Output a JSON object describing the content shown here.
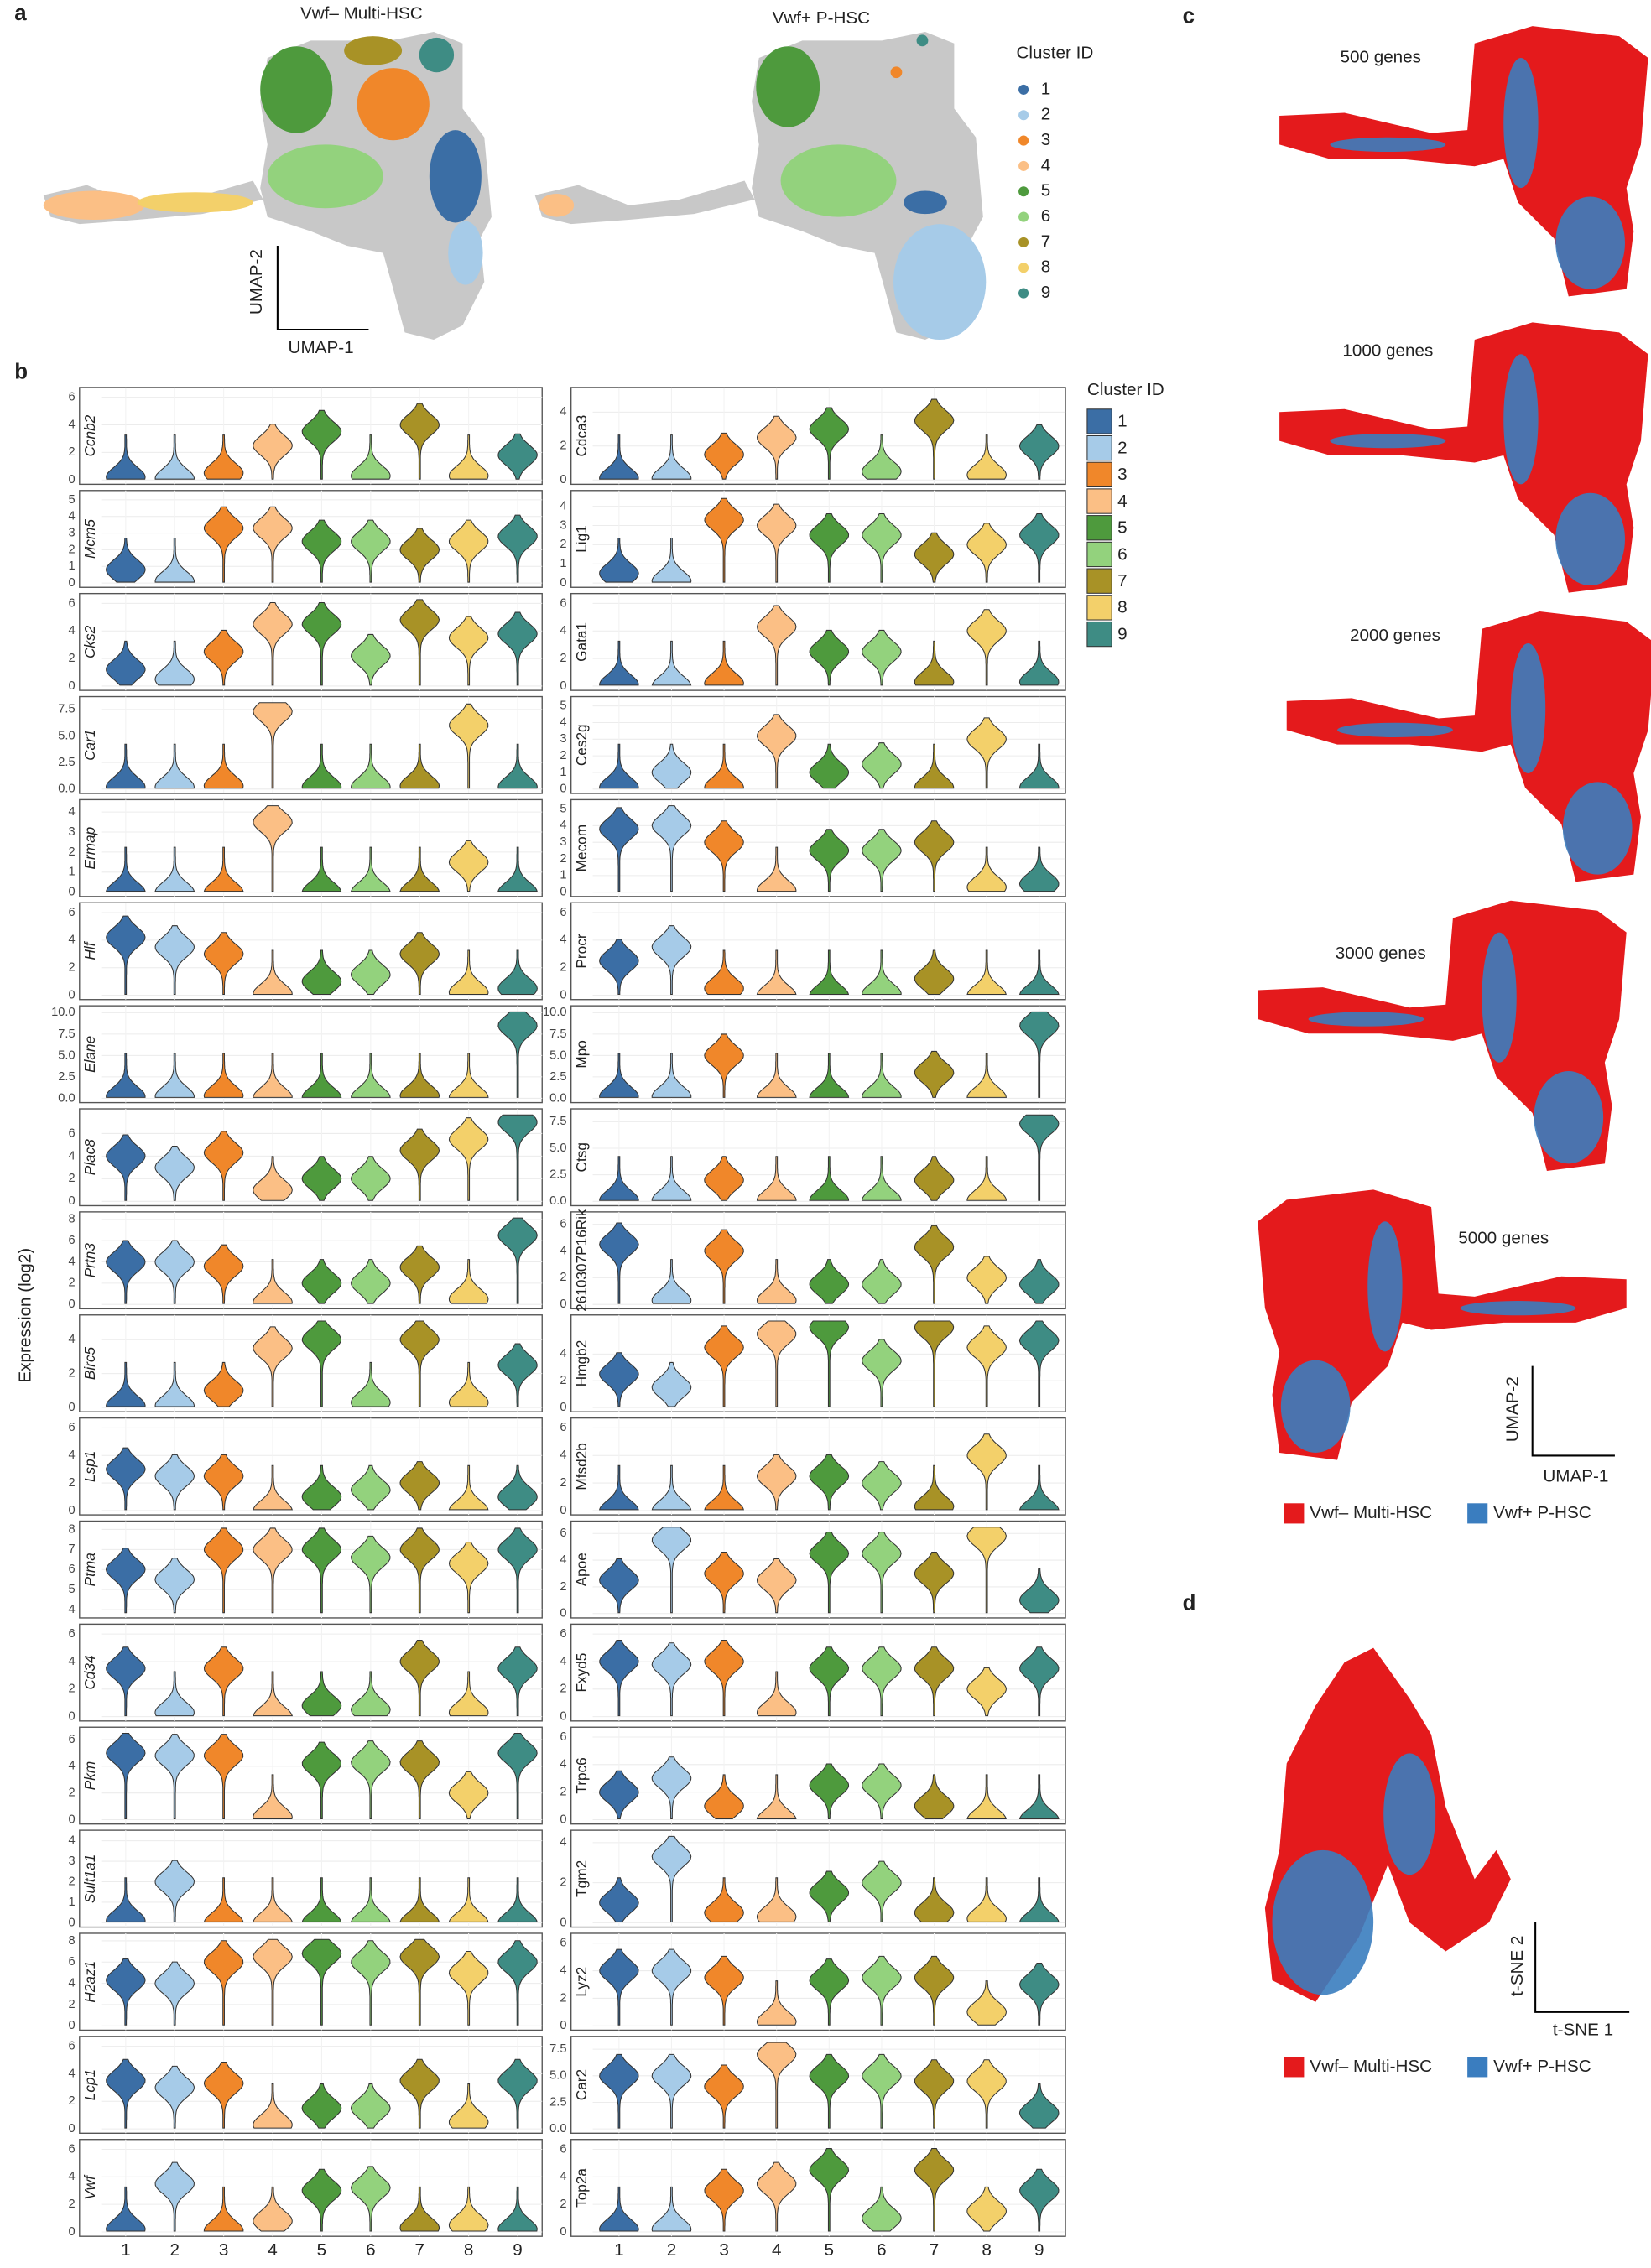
{
  "chart_data": [
    {
      "type": "violin",
      "ylabel": "Expression (log2)",
      "legend_title": "Cluster ID",
      "categories": [
        "1",
        "2",
        "3",
        "4",
        "5",
        "6",
        "7",
        "8",
        "9"
      ],
      "colors": [
        "#3b6ea5",
        "#a6cbe8",
        "#f0872a",
        "#fbbf85",
        "#4e9a3d",
        "#93d27d",
        "#a89226",
        "#f3d06a",
        "#3e8c84"
      ],
      "panels": [
        {
          "gene": "Ccnb2",
          "column": "left",
          "ylim": [
            0,
            6.4
          ],
          "yticks": [
            0,
            2,
            4,
            6
          ],
          "values": [
            0.2,
            0.1,
            0.5,
            2.5,
            3.5,
            0.3,
            4,
            0.3,
            1.8
          ]
        },
        {
          "gene": "Mcm5",
          "column": "left",
          "ylim": [
            0,
            5.3
          ],
          "yticks": [
            0,
            1,
            2,
            3,
            4,
            5
          ],
          "values": [
            0.8,
            0.1,
            3.3,
            3.3,
            2.5,
            2.5,
            2,
            2.5,
            2.8
          ]
        },
        {
          "gene": "Cks2",
          "column": "left",
          "ylim": [
            0,
            6.4
          ],
          "yticks": [
            0,
            2,
            4,
            6
          ],
          "values": [
            1.2,
            0.5,
            2.5,
            4.5,
            4.5,
            2.2,
            4.8,
            3.5,
            3.8
          ]
        },
        {
          "gene": "Car1",
          "column": "left",
          "ylim": [
            0,
            8.3
          ],
          "yticks": [
            {
              "value": 0,
              "label": "0.0"
            },
            2.5,
            {
              "value": 5,
              "label": "5.0"
            },
            7.5
          ],
          "values": [
            0.2,
            0.2,
            0.3,
            7.3,
            0.2,
            0.2,
            0.3,
            6,
            0.2
          ]
        },
        {
          "gene": "Ermap",
          "column": "left",
          "ylim": [
            0,
            4.4
          ],
          "yticks": [
            0,
            1,
            2,
            3,
            4
          ],
          "values": [
            0,
            0,
            0,
            3.5,
            0,
            0,
            0,
            1.5,
            0
          ]
        },
        {
          "gene": "Hlf",
          "column": "left",
          "ylim": [
            0,
            6.4
          ],
          "yticks": [
            0,
            2,
            4,
            6
          ],
          "values": [
            4.2,
            3.5,
            3,
            0.1,
            1,
            1.5,
            3,
            0.2,
            0.5
          ]
        },
        {
          "gene": "Elane",
          "column": "left",
          "ylim": [
            0,
            10.3
          ],
          "yticks": [
            {
              "value": 0,
              "label": "0.0"
            },
            2.5,
            {
              "value": 5,
              "label": "5.0"
            },
            7.5,
            {
              "value": 10,
              "label": "10.0"
            }
          ],
          "values": [
            0.2,
            0.2,
            0.3,
            0.1,
            0.1,
            0.1,
            0.3,
            0.1,
            8.5
          ]
        },
        {
          "gene": "Plac8",
          "column": "left",
          "ylim": [
            0,
            7.8
          ],
          "yticks": [
            0,
            2,
            4,
            6
          ],
          "values": [
            4,
            3,
            4.3,
            1,
            2,
            2,
            4.5,
            5.5,
            7
          ]
        },
        {
          "gene": "Prtn3",
          "column": "left",
          "ylim": [
            0,
            8.3
          ],
          "yticks": [
            0,
            2,
            4,
            6,
            8
          ],
          "values": [
            4,
            4,
            3.6,
            0.2,
            2,
            2,
            3.5,
            0.5,
            6.5
          ]
        },
        {
          "gene": "Birc5",
          "column": "left",
          "ylim": [
            0,
            5.2
          ],
          "yticks": [
            0,
            2,
            4
          ],
          "values": [
            0.1,
            0.1,
            1,
            3.5,
            4,
            0.3,
            4,
            0.3,
            2.5
          ]
        },
        {
          "gene": "Lsp1",
          "column": "left",
          "ylim": [
            0,
            6.4
          ],
          "yticks": [
            0,
            2,
            4,
            6
          ],
          "values": [
            3,
            2.5,
            2.5,
            0,
            1,
            1.5,
            2,
            0,
            1
          ]
        },
        {
          "gene": "Ptma",
          "column": "left",
          "ylim": [
            3.8,
            8.2
          ],
          "yticks": [
            4,
            5,
            6,
            7,
            8
          ],
          "values": [
            6,
            5.5,
            7,
            7,
            7,
            6.6,
            7,
            6.3,
            7
          ]
        },
        {
          "gene": "Cd34",
          "column": "left",
          "ylim": [
            0,
            6.4
          ],
          "yticks": [
            0,
            2,
            4,
            6
          ],
          "values": [
            3.5,
            0.3,
            3.5,
            0,
            0.8,
            0.5,
            4,
            0.3,
            3.5
          ]
        },
        {
          "gene": "Pkm",
          "column": "left",
          "ylim": [
            0,
            6.6
          ],
          "yticks": [
            0,
            2,
            4,
            6
          ],
          "values": [
            5,
            4.8,
            4.8,
            0.2,
            4.2,
            4.3,
            4.3,
            2,
            5
          ]
        },
        {
          "gene": "Sult1a1",
          "column": "left",
          "ylim": [
            0,
            4.3
          ],
          "yticks": [
            0,
            1,
            2,
            3,
            4
          ],
          "values": [
            0.1,
            2,
            0,
            0,
            0,
            0,
            0,
            0,
            0
          ]
        },
        {
          "gene": "H2az1",
          "column": "left",
          "ylim": [
            0,
            8.3
          ],
          "yticks": [
            0,
            2,
            4,
            6,
            8
          ],
          "values": [
            4.3,
            4,
            6,
            6.5,
            6.8,
            6,
            6.5,
            5,
            6
          ]
        },
        {
          "gene": "Lcp1",
          "column": "left",
          "ylim": [
            0,
            6.4
          ],
          "yticks": [
            0,
            2,
            4,
            6
          ],
          "values": [
            3.5,
            3,
            3.3,
            0.3,
            1.5,
            1.5,
            3.5,
            0.5,
            3.5
          ]
        },
        {
          "gene": "Vwf",
          "column": "left",
          "ylim": [
            0,
            6.4
          ],
          "yticks": [
            0,
            2,
            4,
            6
          ],
          "values": [
            0.2,
            3.5,
            0.1,
            0.8,
            3,
            3.2,
            0.3,
            0.5,
            0.2
          ]
        },
        {
          "gene": "Cdca3",
          "column": "right",
          "ylim": [
            0,
            5.2
          ],
          "yticks": [
            0,
            2,
            4
          ],
          "values": [
            0.1,
            0.1,
            1.5,
            2.5,
            3,
            0.5,
            3.5,
            0.3,
            2
          ]
        },
        {
          "gene": "Lig1",
          "column": "right",
          "ylim": [
            0,
            4.6
          ],
          "yticks": [
            0,
            1,
            2,
            3,
            4
          ],
          "values": [
            0.5,
            0.1,
            3.3,
            3,
            2.5,
            2.5,
            1.5,
            2,
            2.5
          ]
        },
        {
          "gene": "Gata1",
          "column": "right",
          "ylim": [
            0,
            6.4
          ],
          "yticks": [
            0,
            2,
            4,
            6
          ],
          "values": [
            0.1,
            0,
            0.2,
            4.3,
            2.5,
            2.5,
            0.3,
            4,
            0.3
          ]
        },
        {
          "gene": "Ces2g",
          "column": "right",
          "ylim": [
            0,
            5.3
          ],
          "yticks": [
            0,
            1,
            2,
            3,
            4,
            5
          ],
          "values": [
            0.1,
            1,
            0.1,
            3.2,
            1,
            1.5,
            0.1,
            3,
            0.1
          ]
        },
        {
          "gene": "Mecom",
          "column": "right",
          "ylim": [
            0,
            5.3
          ],
          "yticks": [
            0,
            1,
            2,
            3,
            4,
            5
          ],
          "values": [
            3.8,
            4,
            3,
            0.1,
            2.5,
            2.5,
            3,
            0.3,
            0.5
          ]
        },
        {
          "gene": "Procr",
          "column": "right",
          "ylim": [
            0,
            6.4
          ],
          "yticks": [
            0,
            2,
            4,
            6
          ],
          "values": [
            2.5,
            3.5,
            0.5,
            0,
            0,
            0.1,
            1.2,
            0,
            0
          ]
        },
        {
          "gene": "Mpo",
          "column": "right",
          "ylim": [
            0,
            10.3
          ],
          "yticks": [
            {
              "value": 0,
              "label": "0.0"
            },
            2.5,
            {
              "value": 5,
              "label": "5.0"
            },
            7.5,
            {
              "value": 10,
              "label": "10.0"
            }
          ],
          "values": [
            0.2,
            0.2,
            5,
            0.1,
            0.1,
            0.2,
            3,
            0.1,
            8.5
          ]
        },
        {
          "gene": "Ctsg",
          "column": "right",
          "ylim": [
            0,
            8.3
          ],
          "yticks": [
            {
              "value": 0,
              "label": "0.0"
            },
            2.5,
            {
              "value": 5,
              "label": "5.0"
            },
            7.5
          ],
          "values": [
            0.1,
            0.1,
            2,
            0.1,
            0.1,
            0.1,
            2,
            0.1,
            7.3
          ]
        },
        {
          "gene": "2610307P16Rik",
          "column": "right",
          "ylim": [
            0,
            6.6
          ],
          "yticks": [
            0,
            2,
            4,
            6
          ],
          "values": [
            4.5,
            0.3,
            4,
            0.3,
            1.5,
            1.5,
            4.3,
            2,
            1.5
          ]
        },
        {
          "gene": "Hmgb2",
          "column": "right",
          "ylim": [
            0,
            6.6
          ],
          "yticks": [
            0,
            2,
            4
          ],
          "values": [
            2.5,
            1.5,
            4.5,
            5.5,
            6,
            3.5,
            6,
            4.5,
            5
          ]
        },
        {
          "gene": "Mfsd2b",
          "column": "right",
          "ylim": [
            0,
            6.4
          ],
          "yticks": [
            0,
            2,
            4,
            6
          ],
          "values": [
            0,
            0,
            0,
            2.5,
            2.5,
            2,
            0.3,
            4,
            0
          ]
        },
        {
          "gene": "Apoe",
          "column": "right",
          "ylim": [
            0,
            6.6
          ],
          "yticks": [
            0,
            2,
            4,
            6
          ],
          "values": [
            2.5,
            5.5,
            3,
            2.5,
            4.5,
            4.5,
            3,
            5.8,
            1
          ]
        },
        {
          "gene": "Fxyd5",
          "column": "right",
          "ylim": [
            0,
            6.4
          ],
          "yticks": [
            0,
            2,
            4,
            6
          ],
          "values": [
            4,
            3.8,
            4,
            0.3,
            3.5,
            3.5,
            3.5,
            2,
            3.5
          ]
        },
        {
          "gene": "Trpc6",
          "column": "right",
          "ylim": [
            0,
            6.4
          ],
          "yticks": [
            0,
            2,
            4,
            6
          ],
          "values": [
            2,
            3,
            1,
            0,
            2.5,
            2.5,
            1,
            0,
            0
          ]
        },
        {
          "gene": "Tgm2",
          "column": "right",
          "ylim": [
            0,
            4.4
          ],
          "yticks": [
            0,
            2,
            4
          ],
          "values": [
            1,
            3.3,
            0.5,
            0.3,
            1.5,
            2,
            0.5,
            0.2,
            0
          ]
        },
        {
          "gene": "Lyz2",
          "column": "right",
          "ylim": [
            0,
            6.4
          ],
          "yticks": [
            0,
            2,
            4,
            6
          ],
          "values": [
            4,
            4,
            3.5,
            0.3,
            3.3,
            3.5,
            3.5,
            1,
            3
          ]
        },
        {
          "gene": "Car2",
          "column": "right",
          "ylim": [
            0,
            8.3
          ],
          "yticks": [
            {
              "value": 0,
              "label": "0.0"
            },
            2.5,
            {
              "value": 5,
              "label": "5.0"
            },
            7.5
          ],
          "values": [
            5,
            5,
            4,
            7,
            5,
            5,
            4.5,
            4.5,
            1.5
          ]
        },
        {
          "gene": "Top2a",
          "column": "right",
          "ylim": [
            0,
            6.4
          ],
          "yticks": [
            0,
            2,
            4,
            6
          ],
          "values": [
            0.2,
            0.2,
            3,
            3.5,
            4.5,
            1,
            4.5,
            1.5,
            3
          ]
        }
      ]
    }
  ],
  "figure": {
    "panel_labels": [
      "a",
      "b",
      "c",
      "d"
    ],
    "umap_titles": [
      "Vwf– Multi-HSC",
      "Vwf+ P-HSC"
    ],
    "umap_axes": [
      "UMAP-2",
      "UMAP-1"
    ],
    "gene_counts": [
      "500 genes",
      "1000 genes",
      "2000 genes",
      "3000 genes",
      "5000 genes"
    ],
    "group_legend": [
      "Vwf– Multi-HSC",
      "Vwf+ P-HSC"
    ],
    "group_colors": [
      "#e41a1c",
      "#3a7dbf"
    ],
    "tsne_axes": [
      "t-SNE 2",
      "t-SNE 1"
    ]
  }
}
